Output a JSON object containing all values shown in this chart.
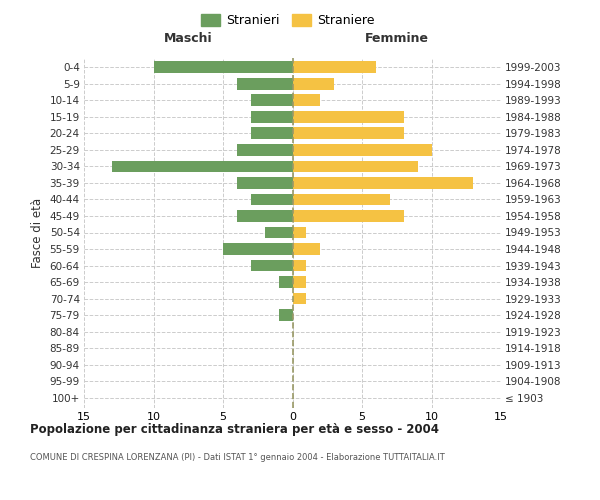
{
  "age_groups": [
    "100+",
    "95-99",
    "90-94",
    "85-89",
    "80-84",
    "75-79",
    "70-74",
    "65-69",
    "60-64",
    "55-59",
    "50-54",
    "45-49",
    "40-44",
    "35-39",
    "30-34",
    "25-29",
    "20-24",
    "15-19",
    "10-14",
    "5-9",
    "0-4"
  ],
  "birth_years": [
    "≤ 1903",
    "1904-1908",
    "1909-1913",
    "1914-1918",
    "1919-1923",
    "1924-1928",
    "1929-1933",
    "1934-1938",
    "1939-1943",
    "1944-1948",
    "1949-1953",
    "1954-1958",
    "1959-1963",
    "1964-1968",
    "1969-1973",
    "1974-1978",
    "1979-1983",
    "1984-1988",
    "1989-1993",
    "1994-1998",
    "1999-2003"
  ],
  "maschi": [
    0,
    0,
    0,
    0,
    0,
    1,
    0,
    1,
    3,
    5,
    2,
    4,
    3,
    4,
    13,
    4,
    3,
    3,
    3,
    4,
    10
  ],
  "femmine": [
    0,
    0,
    0,
    0,
    0,
    0,
    1,
    1,
    1,
    2,
    1,
    8,
    7,
    13,
    9,
    10,
    8,
    8,
    2,
    3,
    6
  ],
  "maschi_color": "#6b9e5e",
  "femmine_color": "#f5c243",
  "title": "Popolazione per cittadinanza straniera per età e sesso - 2004",
  "subtitle": "COMUNE DI CRESPINA LORENZANA (PI) - Dati ISTAT 1° gennaio 2004 - Elaborazione TUTTAITALIA.IT",
  "xlabel_left": "Maschi",
  "xlabel_right": "Femmine",
  "ylabel_left": "Fasce di età",
  "legend_stranieri": "Stranieri",
  "legend_straniere": "Straniere",
  "xmax": 15,
  "background_color": "#ffffff",
  "grid_color": "#cccccc"
}
